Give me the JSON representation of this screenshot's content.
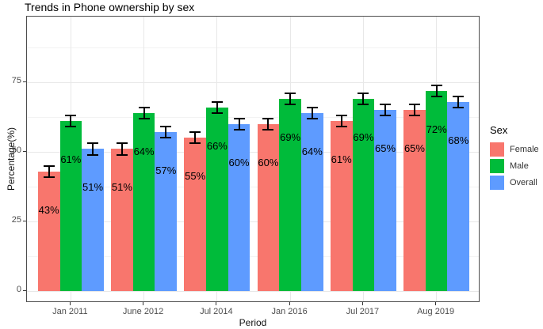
{
  "chart_data": {
    "type": "bar",
    "title": "Trends in Phone ownership by sex",
    "xlabel": "Period",
    "ylabel": "Percentage(%)",
    "categories": [
      "Jan 2011",
      "June 2012",
      "Jul 2014",
      "Jan 2016",
      "Jul 2017",
      "Aug 2019"
    ],
    "series": [
      {
        "name": "Female",
        "color": "#F8766D",
        "values": [
          43,
          51,
          55,
          60,
          61,
          65
        ],
        "labels": [
          "43%",
          "51%",
          "55%",
          "60%",
          "61%",
          "65%"
        ],
        "errors": [
          2,
          2,
          2,
          2,
          2,
          2
        ]
      },
      {
        "name": "Male",
        "color": "#00BB3A",
        "values": [
          61,
          64,
          66,
          69,
          69,
          72
        ],
        "labels": [
          "61%",
          "64%",
          "66%",
          "69%",
          "69%",
          "72%"
        ],
        "errors": [
          2,
          2,
          2,
          2,
          2,
          2
        ]
      },
      {
        "name": "Overall",
        "color": "#5E9BFF",
        "values": [
          51,
          57,
          60,
          64,
          65,
          68
        ],
        "labels": [
          "51%",
          "57%",
          "60%",
          "64%",
          "65%",
          "68%"
        ],
        "errors": [
          2,
          2,
          2,
          2,
          2,
          2
        ]
      }
    ],
    "value_suffix": "%",
    "yticks": [
      0,
      25,
      50,
      75
    ],
    "yticks_minor": [
      12.5,
      37.5,
      62.5,
      87.5
    ],
    "ylim": [
      0,
      98
    ],
    "grid": true,
    "error_bars": true,
    "legend": {
      "title": "Sex",
      "position": "right",
      "entries": [
        "Female",
        "Male",
        "Overall"
      ]
    }
  }
}
